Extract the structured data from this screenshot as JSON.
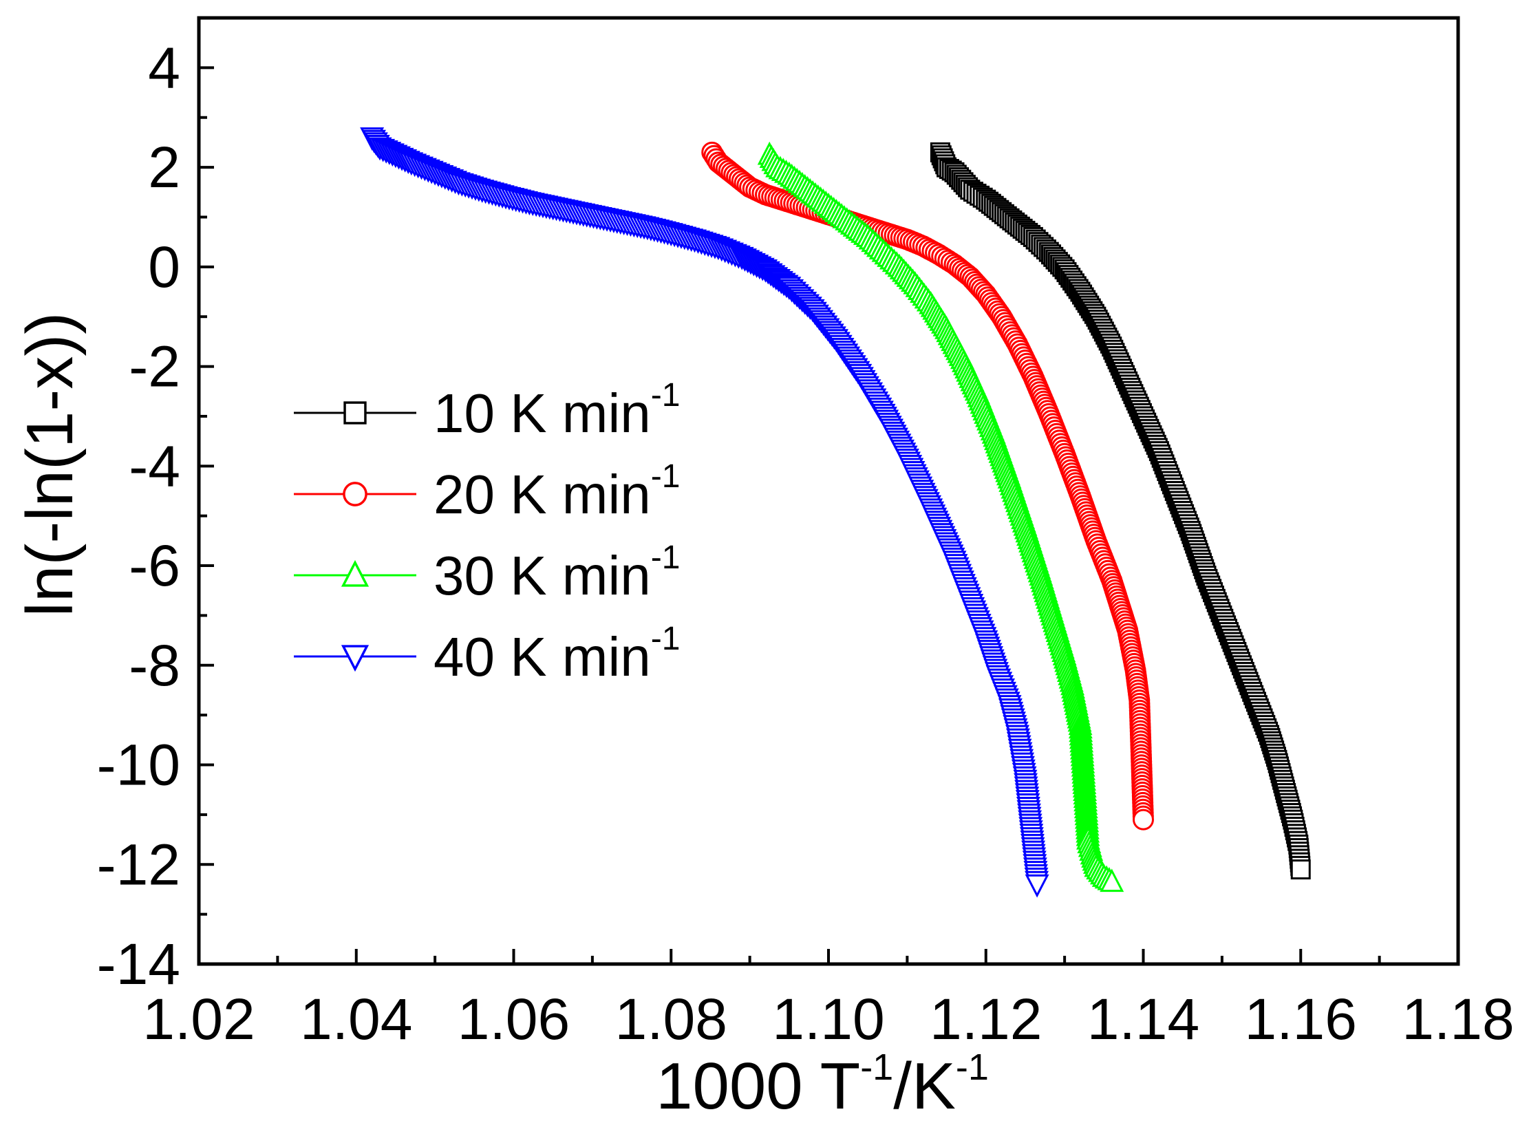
{
  "chart_data": {
    "type": "scatter",
    "title": "",
    "xlabel": {
      "base": "1000 T",
      "sup1": "-1",
      "mid": "/K",
      "sup2": "-1"
    },
    "ylabel": "ln(-ln(1-x))",
    "xlim": [
      1.02,
      1.18
    ],
    "ylim": [
      -14,
      5
    ],
    "xticks": [
      1.02,
      1.04,
      1.06,
      1.08,
      1.1,
      1.12,
      1.14,
      1.16,
      1.18
    ],
    "xtick_labels": [
      "1.02",
      "1.04",
      "1.06",
      "1.08",
      "1.10",
      "1.12",
      "1.14",
      "1.16",
      "1.18"
    ],
    "yticks": [
      4,
      2,
      0,
      -2,
      -4,
      -6,
      -8,
      -10,
      -12,
      -14
    ],
    "ytick_labels": [
      "4",
      "2",
      "0",
      "-2",
      "-4",
      "-6",
      "-8",
      "-10",
      "-12",
      "-14"
    ],
    "grid": false,
    "legend_position": "center-left",
    "series": [
      {
        "name": "10 K min",
        "unit_sup": "-1",
        "color": "#000000",
        "marker": "square",
        "points": [
          [
            1.1142,
            2.3
          ],
          [
            1.115,
            2.0
          ],
          [
            1.116,
            1.9
          ],
          [
            1.118,
            1.55
          ],
          [
            1.12,
            1.35
          ],
          [
            1.122,
            1.1
          ],
          [
            1.124,
            0.85
          ],
          [
            1.126,
            0.6
          ],
          [
            1.128,
            0.3
          ],
          [
            1.13,
            -0.05
          ],
          [
            1.132,
            -0.5
          ],
          [
            1.134,
            -1.0
          ],
          [
            1.136,
            -1.6
          ],
          [
            1.138,
            -2.3
          ],
          [
            1.14,
            -3.0
          ],
          [
            1.142,
            -3.7
          ],
          [
            1.144,
            -4.5
          ],
          [
            1.146,
            -5.3
          ],
          [
            1.148,
            -6.2
          ],
          [
            1.15,
            -7.0
          ],
          [
            1.152,
            -7.8
          ],
          [
            1.154,
            -8.6
          ],
          [
            1.156,
            -9.4
          ],
          [
            1.157,
            -9.9
          ],
          [
            1.158,
            -10.5
          ],
          [
            1.159,
            -11.1
          ],
          [
            1.1597,
            -11.6
          ],
          [
            1.16,
            -12.1
          ]
        ]
      },
      {
        "name": "20 K min",
        "unit_sup": "-1",
        "color": "#ff0000",
        "marker": "circle",
        "points": [
          [
            1.0852,
            2.3
          ],
          [
            1.086,
            2.1
          ],
          [
            1.088,
            1.85
          ],
          [
            1.09,
            1.6
          ],
          [
            1.092,
            1.45
          ],
          [
            1.094,
            1.35
          ],
          [
            1.096,
            1.25
          ],
          [
            1.098,
            1.15
          ],
          [
            1.1,
            1.05
          ],
          [
            1.102,
            0.95
          ],
          [
            1.104,
            0.85
          ],
          [
            1.106,
            0.75
          ],
          [
            1.108,
            0.65
          ],
          [
            1.11,
            0.55
          ],
          [
            1.112,
            0.42
          ],
          [
            1.114,
            0.25
          ],
          [
            1.116,
            0.05
          ],
          [
            1.118,
            -0.2
          ],
          [
            1.12,
            -0.55
          ],
          [
            1.122,
            -1.0
          ],
          [
            1.124,
            -1.55
          ],
          [
            1.126,
            -2.2
          ],
          [
            1.128,
            -2.95
          ],
          [
            1.13,
            -3.75
          ],
          [
            1.132,
            -4.6
          ],
          [
            1.134,
            -5.5
          ],
          [
            1.136,
            -6.3
          ],
          [
            1.137,
            -6.8
          ],
          [
            1.138,
            -7.3
          ],
          [
            1.1385,
            -7.7
          ],
          [
            1.139,
            -8.1
          ],
          [
            1.1395,
            -8.7
          ],
          [
            1.14,
            -11.1
          ]
        ]
      },
      {
        "name": "30 K min",
        "unit_sup": "-1",
        "color": "#00ff00",
        "marker": "triangle-up",
        "points": [
          [
            1.0925,
            2.25
          ],
          [
            1.0935,
            2.0
          ],
          [
            1.095,
            1.85
          ],
          [
            1.097,
            1.6
          ],
          [
            1.099,
            1.35
          ],
          [
            1.101,
            1.1
          ],
          [
            1.103,
            0.85
          ],
          [
            1.105,
            0.6
          ],
          [
            1.107,
            0.3
          ],
          [
            1.109,
            0.0
          ],
          [
            1.111,
            -0.35
          ],
          [
            1.113,
            -0.75
          ],
          [
            1.115,
            -1.25
          ],
          [
            1.117,
            -1.85
          ],
          [
            1.119,
            -2.55
          ],
          [
            1.121,
            -3.35
          ],
          [
            1.123,
            -4.25
          ],
          [
            1.125,
            -5.2
          ],
          [
            1.127,
            -6.2
          ],
          [
            1.1285,
            -7.0
          ],
          [
            1.13,
            -7.8
          ],
          [
            1.131,
            -8.4
          ],
          [
            1.132,
            -9.2
          ],
          [
            1.133,
            -11.5
          ],
          [
            1.1335,
            -11.8
          ],
          [
            1.134,
            -12.05
          ],
          [
            1.135,
            -12.25
          ],
          [
            1.136,
            -12.35
          ]
        ]
      },
      {
        "name": "40 K min",
        "unit_sup": "-1",
        "color": "#0000ff",
        "marker": "triangle-down",
        "points": [
          [
            1.042,
            2.6
          ],
          [
            1.043,
            2.4
          ],
          [
            1.045,
            2.25
          ],
          [
            1.047,
            2.1
          ],
          [
            1.05,
            1.9
          ],
          [
            1.053,
            1.7
          ],
          [
            1.056,
            1.55
          ],
          [
            1.059,
            1.42
          ],
          [
            1.062,
            1.3
          ],
          [
            1.065,
            1.2
          ],
          [
            1.068,
            1.1
          ],
          [
            1.071,
            1.0
          ],
          [
            1.074,
            0.9
          ],
          [
            1.077,
            0.8
          ],
          [
            1.08,
            0.68
          ],
          [
            1.083,
            0.55
          ],
          [
            1.086,
            0.4
          ],
          [
            1.089,
            0.2
          ],
          [
            1.092,
            -0.05
          ],
          [
            1.095,
            -0.4
          ],
          [
            1.098,
            -0.85
          ],
          [
            1.101,
            -1.45
          ],
          [
            1.104,
            -2.15
          ],
          [
            1.107,
            -2.95
          ],
          [
            1.11,
            -3.85
          ],
          [
            1.113,
            -4.85
          ],
          [
            1.116,
            -5.9
          ],
          [
            1.118,
            -6.7
          ],
          [
            1.12,
            -7.5
          ],
          [
            1.1215,
            -8.2
          ],
          [
            1.123,
            -8.8
          ],
          [
            1.124,
            -9.4
          ],
          [
            1.125,
            -10.3
          ],
          [
            1.1265,
            -12.4
          ]
        ]
      }
    ]
  }
}
